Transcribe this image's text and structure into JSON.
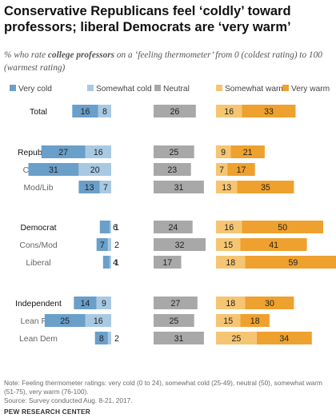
{
  "title": "Conservative Republicans feel ‘coldly’ toward professors; liberal Democrats are ‘very warm’",
  "subtitle_pre": "% who rate ",
  "subtitle_bold": "college professors",
  "subtitle_post": " on a ‘feeling thermometer’ from 0 (coldest rating) to 100 (warmest rating)",
  "note": "Note: Feeling thermometer ratings: very cold (0 to 24), somewhat cold (25-49), neutral (50), somewhat warm (51-75), very warm (76-100).",
  "source": "Source: Survey conducted Aug. 8-21, 2017.",
  "org": "PEW RESEARCH CENTER",
  "colors": {
    "very_cold": "#6a9fc9",
    "somewhat_cold": "#a9c9e3",
    "neutral": "#a8a8a8",
    "somewhat_warm": "#f5c572",
    "very_warm": "#eea12e"
  },
  "chart_data": {
    "type": "bar",
    "stacked": true,
    "legend_position": "top",
    "series": [
      {
        "name": "Very cold",
        "values": [
          16,
          27,
          31,
          13,
          6,
          7,
          4,
          14,
          25,
          8
        ]
      },
      {
        "name": "Somewhat cold",
        "values": [
          8,
          16,
          20,
          7,
          1,
          2,
          1,
          9,
          16,
          2
        ]
      },
      {
        "name": "Neutral",
        "values": [
          26,
          25,
          23,
          31,
          24,
          32,
          17,
          27,
          25,
          31
        ]
      },
      {
        "name": "Somewhat warm",
        "values": [
          16,
          9,
          7,
          13,
          16,
          15,
          18,
          18,
          15,
          25
        ]
      },
      {
        "name": "Very warm",
        "values": [
          33,
          21,
          17,
          35,
          50,
          41,
          59,
          30,
          18,
          34
        ]
      }
    ],
    "categories": [
      "Total",
      "Republican",
      "Conserv",
      "Mod/Lib",
      "Democrat",
      "Cons/Mod",
      "Liberal",
      "Independent",
      "Lean Rep",
      "Lean Dem"
    ],
    "category_style": [
      "main",
      "main",
      "sub",
      "sub",
      "main",
      "sub",
      "sub",
      "main",
      "sub",
      "sub"
    ]
  }
}
